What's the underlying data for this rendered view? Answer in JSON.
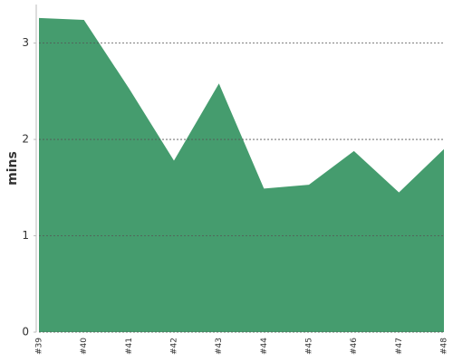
{
  "chart_data": {
    "type": "area",
    "y_label": "mins",
    "categories": [
      "#39",
      "#40",
      "#41",
      "#42",
      "#43",
      "#44",
      "#45",
      "#46",
      "#47",
      "#48"
    ],
    "values": [
      3.26,
      3.24,
      2.53,
      1.78,
      2.58,
      1.49,
      1.53,
      1.88,
      1.45,
      1.9
    ],
    "color": "#459c6e",
    "ylim": [
      0,
      3.4
    ],
    "yticks": [
      0,
      1,
      2,
      3
    ],
    "grid": true
  }
}
